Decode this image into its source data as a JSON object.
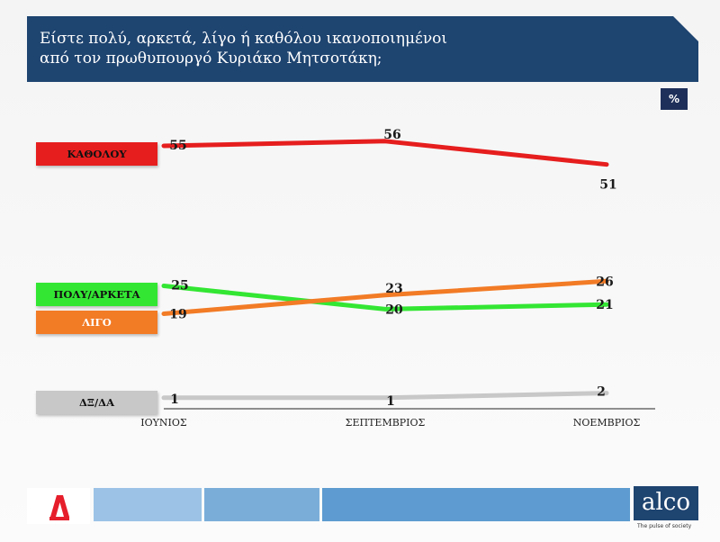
{
  "header": {
    "title_line1": "Είστε πολύ, αρκετά, λίγο ή καθόλου ικανοποιημένοι",
    "title_line2": "από τον πρωθυπουργό Κυριάκο Μητσοτάκη;"
  },
  "unit_badge": "%",
  "legend": [
    {
      "label": "ΚΑΘΟΛΟΥ",
      "color": "#e61e1e",
      "text_color": "#111111"
    },
    {
      "label": "ΠΟΛΥ/ΑΡΚΕΤΑ",
      "color": "#33e633",
      "text_color": "#111111"
    },
    {
      "label": "ΛΙΓΟ",
      "color": "#f27b26",
      "text_color": "#ffffff"
    },
    {
      "label": "ΔΞ/ΔΑ",
      "color": "#c8c8c8",
      "text_color": "#111111"
    }
  ],
  "chart_data": {
    "type": "line",
    "categories": [
      "ΙΟΥΝΙΟΣ",
      "ΣΕΠΤΕΜΒΡΙΟΣ",
      "ΝΟΕΜΒΡΙΟΣ"
    ],
    "series": [
      {
        "name": "ΚΑΘΟΛΟΥ",
        "values": [
          55,
          56,
          51
        ],
        "color": "#e61e1e"
      },
      {
        "name": "ΠΟΛΥ/ΑΡΚΕΤΑ",
        "values": [
          25,
          20,
          21
        ],
        "color": "#33e633"
      },
      {
        "name": "ΛΙΓΟ",
        "values": [
          19,
          23,
          26
        ],
        "color": "#f27b26"
      },
      {
        "name": "ΔΞ/ΔΑ",
        "values": [
          1,
          1,
          2
        ],
        "color": "#c8c8c8"
      }
    ],
    "unit": "%",
    "ylim": [
      0,
      60
    ],
    "grid": false,
    "legend_position": "left"
  },
  "footer": {
    "brand": "alco",
    "tagline": "The pulse of society",
    "bar_colors": [
      "#b7d3ec",
      "#9cc3e6",
      "#7aaed9",
      "#5d9bd0"
    ]
  }
}
